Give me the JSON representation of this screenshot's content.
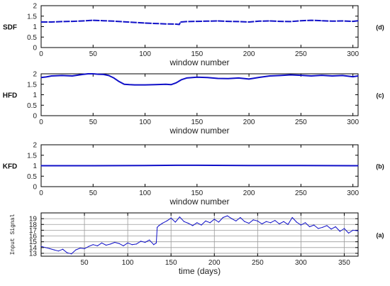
{
  "chart_data": [
    {
      "id": "sdf",
      "type": "line",
      "ylabel": "SDF",
      "xlabel": "window number",
      "panel_label": "(d)",
      "xlim": [
        0,
        305
      ],
      "ylim": [
        0,
        2
      ],
      "xticks": [
        0,
        50,
        100,
        150,
        200,
        250,
        300
      ],
      "yticks": [
        0,
        0.5,
        1,
        1.5,
        2
      ],
      "grid": false,
      "color": "#1010c8",
      "style": "dashed",
      "x": [
        0,
        10,
        20,
        30,
        40,
        50,
        60,
        70,
        80,
        90,
        100,
        110,
        120,
        130,
        133,
        134,
        140,
        150,
        160,
        170,
        180,
        190,
        200,
        210,
        220,
        230,
        240,
        250,
        260,
        270,
        280,
        290,
        300,
        305
      ],
      "values": [
        1.22,
        1.22,
        1.24,
        1.25,
        1.27,
        1.3,
        1.28,
        1.26,
        1.23,
        1.2,
        1.17,
        1.15,
        1.13,
        1.12,
        1.1,
        1.22,
        1.24,
        1.25,
        1.26,
        1.27,
        1.25,
        1.24,
        1.22,
        1.26,
        1.27,
        1.25,
        1.24,
        1.28,
        1.3,
        1.28,
        1.26,
        1.27,
        1.25,
        1.28
      ]
    },
    {
      "id": "hfd",
      "type": "line",
      "ylabel": "HFD",
      "xlabel": "window number",
      "panel_label": "(c)",
      "xlim": [
        0,
        305
      ],
      "ylim": [
        0,
        2
      ],
      "xticks": [
        0,
        50,
        100,
        150,
        200,
        250,
        300
      ],
      "yticks": [
        0,
        0.5,
        1,
        1.5,
        2
      ],
      "grid": false,
      "color": "#1010c8",
      "style": "solid",
      "x": [
        0,
        5,
        10,
        20,
        30,
        40,
        45,
        50,
        55,
        60,
        65,
        70,
        75,
        80,
        85,
        90,
        100,
        110,
        120,
        125,
        130,
        135,
        140,
        150,
        160,
        170,
        180,
        190,
        200,
        210,
        220,
        230,
        240,
        250,
        260,
        270,
        280,
        290,
        300,
        305
      ],
      "values": [
        1.82,
        1.85,
        1.9,
        1.92,
        1.9,
        1.97,
        2.0,
        2.0,
        1.98,
        1.97,
        1.92,
        1.8,
        1.63,
        1.5,
        1.48,
        1.47,
        1.47,
        1.48,
        1.5,
        1.48,
        1.57,
        1.72,
        1.8,
        1.84,
        1.82,
        1.78,
        1.77,
        1.8,
        1.75,
        1.83,
        1.9,
        1.92,
        1.95,
        1.93,
        1.9,
        1.93,
        1.9,
        1.92,
        1.86,
        1.9
      ]
    },
    {
      "id": "kfd",
      "type": "line",
      "ylabel": "KFD",
      "xlabel": "window number",
      "panel_label": "(b)",
      "xlim": [
        0,
        305
      ],
      "ylim": [
        0,
        2
      ],
      "xticks": [
        0,
        50,
        100,
        150,
        200,
        250,
        300
      ],
      "yticks": [
        0,
        0.5,
        1,
        1.5,
        2
      ],
      "grid": false,
      "color": "#1010c8",
      "style": "solid",
      "x": [
        0,
        50,
        100,
        130,
        150,
        200,
        250,
        300,
        305
      ],
      "values": [
        1.0,
        1.0,
        1.01,
        1.02,
        1.02,
        1.01,
        1.01,
        1.0,
        1.0
      ]
    },
    {
      "id": "input",
      "type": "line",
      "ylabel": "Input Signal",
      "xlabel": "time (days)",
      "panel_label": "(a)",
      "xlim": [
        0,
        366
      ],
      "ylim": [
        12.5,
        20
      ],
      "xticks": [
        50,
        100,
        150,
        200,
        250,
        300,
        350
      ],
      "yticks": [
        13,
        14,
        15,
        16,
        17,
        18,
        19
      ],
      "grid": true,
      "color": "#1010c8",
      "style": "solid",
      "x": [
        0,
        5,
        10,
        15,
        20,
        25,
        30,
        35,
        40,
        45,
        50,
        55,
        60,
        65,
        70,
        75,
        80,
        85,
        90,
        95,
        100,
        105,
        110,
        115,
        120,
        125,
        130,
        133,
        134,
        136,
        140,
        145,
        150,
        155,
        160,
        165,
        170,
        175,
        180,
        185,
        190,
        195,
        200,
        205,
        210,
        215,
        220,
        225,
        230,
        235,
        240,
        245,
        250,
        255,
        260,
        265,
        270,
        275,
        280,
        285,
        290,
        295,
        300,
        305,
        310,
        315,
        320,
        325,
        330,
        335,
        340,
        345,
        350,
        355,
        360,
        366
      ],
      "values": [
        14.2,
        14.0,
        13.8,
        13.6,
        13.4,
        13.7,
        13.1,
        12.9,
        13.6,
        13.9,
        13.8,
        14.2,
        14.5,
        14.3,
        14.8,
        14.4,
        14.6,
        14.9,
        14.7,
        14.3,
        14.8,
        14.5,
        14.6,
        15.1,
        14.9,
        15.3,
        14.5,
        14.8,
        17.5,
        17.8,
        18.2,
        18.6,
        19.1,
        18.4,
        19.3,
        18.5,
        18.2,
        17.8,
        18.3,
        17.9,
        18.6,
        18.3,
        18.9,
        18.4,
        19.2,
        19.5,
        19.0,
        18.6,
        19.2,
        18.5,
        18.2,
        18.8,
        18.6,
        18.1,
        18.5,
        18.3,
        18.7,
        18.1,
        18.5,
        18.0,
        19.2,
        18.4,
        17.9,
        18.3,
        17.6,
        17.9,
        17.3,
        17.5,
        17.8,
        17.2,
        17.6,
        16.8,
        17.3,
        16.5,
        17.0,
        16.9
      ]
    }
  ]
}
